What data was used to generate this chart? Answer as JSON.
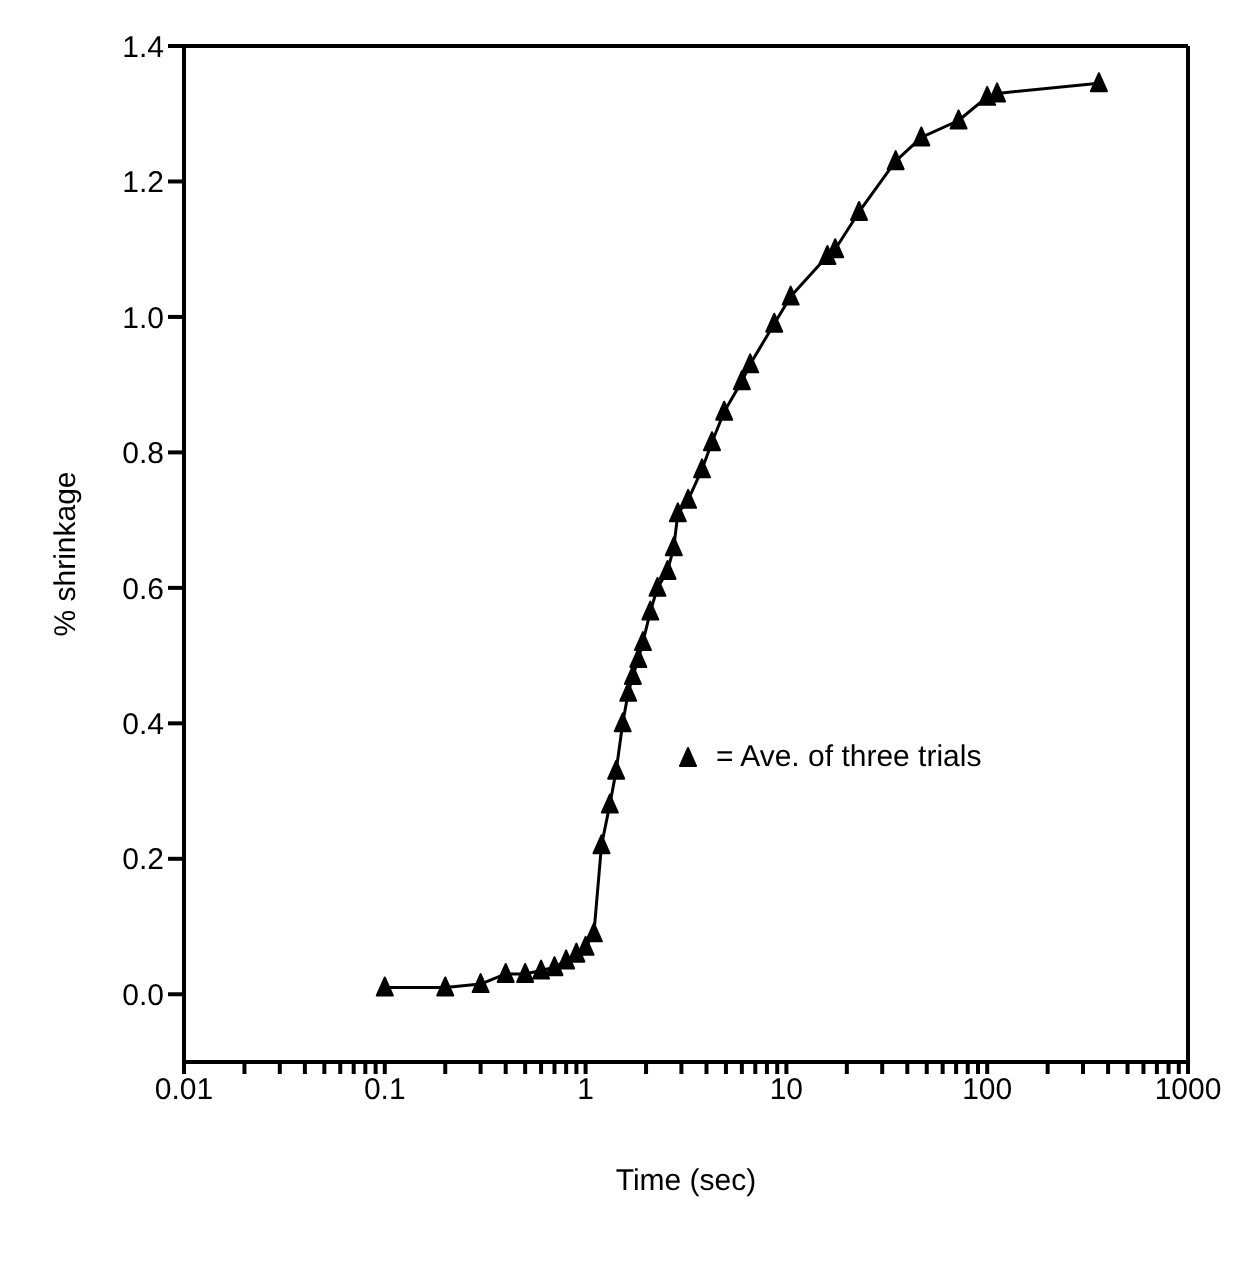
{
  "chart_data": {
    "type": "line",
    "xlabel": "Time (sec)",
    "ylabel": "% shrinkage",
    "log": "x",
    "xlim": [
      0.01,
      1000
    ],
    "ylim": [
      -0.1,
      1.4
    ],
    "xticks": [
      0.01,
      {
        "value": 0.02,
        "label": null
      },
      {
        "value": 0.03,
        "label": null
      },
      {
        "value": 0.04,
        "label": null
      },
      {
        "value": 0.05,
        "label": null
      },
      {
        "value": 0.06,
        "label": null
      },
      {
        "value": 0.07,
        "label": null
      },
      {
        "value": 0.08,
        "label": null
      },
      {
        "value": 0.09,
        "label": null
      },
      0.1,
      {
        "value": 0.2,
        "label": null
      },
      {
        "value": 0.3,
        "label": null
      },
      {
        "value": 0.4,
        "label": null
      },
      {
        "value": 0.5,
        "label": null
      },
      {
        "value": 0.6,
        "label": null
      },
      {
        "value": 0.7,
        "label": null
      },
      {
        "value": 0.8,
        "label": null
      },
      {
        "value": 0.9,
        "label": null
      },
      1,
      {
        "value": 2,
        "label": null
      },
      {
        "value": 3,
        "label": null
      },
      {
        "value": 4,
        "label": null
      },
      {
        "value": 5,
        "label": null
      },
      {
        "value": 6,
        "label": null
      },
      {
        "value": 7,
        "label": null
      },
      {
        "value": 8,
        "label": null
      },
      {
        "value": 9,
        "label": null
      },
      10,
      {
        "value": 20,
        "label": null
      },
      {
        "value": 30,
        "label": null
      },
      {
        "value": 40,
        "label": null
      },
      {
        "value": 50,
        "label": null
      },
      {
        "value": 60,
        "label": null
      },
      {
        "value": 70,
        "label": null
      },
      {
        "value": 80,
        "label": null
      },
      {
        "value": 90,
        "label": null
      },
      100,
      {
        "value": 200,
        "label": null
      },
      {
        "value": 300,
        "label": null
      },
      {
        "value": 400,
        "label": null
      },
      {
        "value": 500,
        "label": null
      },
      {
        "value": 600,
        "label": null
      },
      {
        "value": 700,
        "label": null
      },
      {
        "value": 800,
        "label": null
      },
      {
        "value": 900,
        "label": null
      },
      1000
    ],
    "yticks": [
      {
        "value": 0,
        "label": "0.0"
      },
      0.2,
      0.4,
      0.6,
      0.8,
      {
        "value": 1,
        "label": "1.0"
      },
      1.2,
      1.4
    ],
    "legend": "right",
    "marker": "triangle",
    "line_style": "solid",
    "series": [
      {
        "name": "= Ave. of three trials",
        "color": "#000000",
        "x": [
          0.1,
          0.2,
          0.3,
          0.4,
          0.5,
          0.6,
          0.7,
          0.8,
          0.9,
          1.0,
          1.1,
          1.2,
          1.32,
          1.42,
          1.53,
          1.63,
          1.72,
          1.83,
          1.93,
          2.1,
          2.28,
          2.56,
          2.75,
          2.88,
          3.24,
          3.8,
          4.26,
          4.9,
          6.0,
          6.6,
          8.7,
          10.5,
          16,
          17.5,
          23,
          35,
          47,
          72,
          100,
          112,
          360
        ],
        "values": [
          0.01,
          0.01,
          0.015,
          0.03,
          0.03,
          0.035,
          0.04,
          0.05,
          0.06,
          0.07,
          0.09,
          0.22,
          0.28,
          0.33,
          0.4,
          0.445,
          0.47,
          0.495,
          0.52,
          0.565,
          0.6,
          0.625,
          0.66,
          0.71,
          0.73,
          0.775,
          0.815,
          0.86,
          0.905,
          0.93,
          0.99,
          1.03,
          1.09,
          1.1,
          1.155,
          1.23,
          1.265,
          1.29,
          1.325,
          1.33,
          1.345
        ]
      }
    ]
  }
}
